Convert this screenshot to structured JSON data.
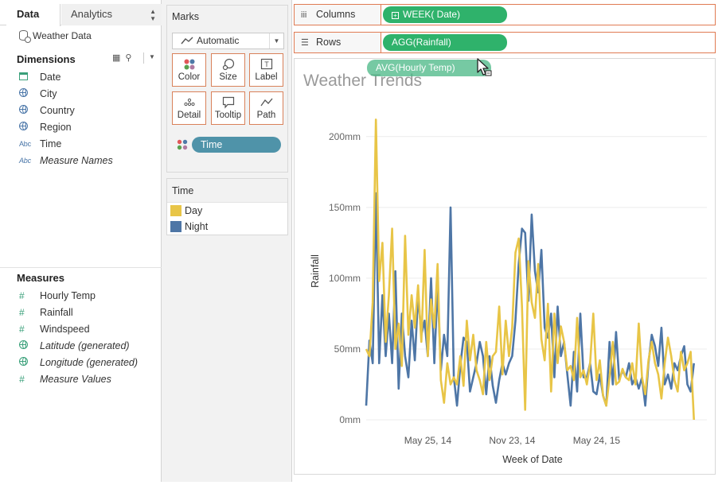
{
  "tabs": {
    "data": "Data",
    "analytics": "Analytics"
  },
  "data_source": "Weather Data",
  "dimensions": {
    "title": "Dimensions",
    "items": [
      {
        "label": "Date",
        "icon": "calendar-icon",
        "italic": false
      },
      {
        "label": "City",
        "icon": "globe-icon",
        "italic": false
      },
      {
        "label": "Country",
        "icon": "globe-icon",
        "italic": false
      },
      {
        "label": "Region",
        "icon": "globe-icon",
        "italic": false
      },
      {
        "label": "Time",
        "icon": "abc-icon",
        "italic": false
      },
      {
        "label": "Measure Names",
        "icon": "abc-icon",
        "italic": true
      }
    ]
  },
  "measures": {
    "title": "Measures",
    "items": [
      {
        "label": "Hourly Temp",
        "icon": "hash-icon",
        "italic": false
      },
      {
        "label": "Rainfall",
        "icon": "hash-icon",
        "italic": false
      },
      {
        "label": "Windspeed",
        "icon": "hash-icon",
        "italic": false
      },
      {
        "label": "Latitude (generated)",
        "icon": "globe-icon",
        "italic": true
      },
      {
        "label": "Longitude (generated)",
        "icon": "globe-icon",
        "italic": true
      },
      {
        "label": "Measure Values",
        "icon": "hash-icon",
        "italic": true
      }
    ]
  },
  "marks": {
    "title": "Marks",
    "mark_type": "Automatic",
    "buttons": {
      "color": "Color",
      "size": "Size",
      "label": "Label",
      "detail": "Detail",
      "tooltip": "Tooltip",
      "path": "Path"
    },
    "color_field": "Time"
  },
  "legend": {
    "title": "Time",
    "items": [
      {
        "label": "Day",
        "color": "#e8c547"
      },
      {
        "label": "Night",
        "color": "#4e76a6"
      }
    ]
  },
  "shelves": {
    "columns_label": "Columns",
    "columns_pill": "WEEK( Date)",
    "rows_label": "Rows",
    "rows_pill": "AGG(Rainfall)"
  },
  "drag_pill": "AVG(Hourly Temp)",
  "colors": {
    "shelf_border": "#e07b53",
    "pill_green": "#2fb26b",
    "pill_teal": "#4f93a9"
  },
  "chart_data": {
    "type": "line",
    "title": "Weather Trends",
    "xlabel": "Week of Date",
    "ylabel": "Rainfall",
    "x_tick_labels": [
      "May 25, 14",
      "Nov 23, 14",
      "May 24, 15"
    ],
    "y_tick_labels": [
      "0mm",
      "50mm",
      "100mm",
      "150mm",
      "200mm"
    ],
    "ylim": [
      0,
      210
    ],
    "grid": true,
    "x_range_weeks": [
      0,
      105
    ],
    "x_tick_weeks": [
      19,
      45,
      71
    ],
    "series": [
      {
        "name": "Day",
        "color": "#e8c547",
        "weeks": [
          0,
          1,
          2,
          3,
          4,
          5,
          6,
          7,
          8,
          9,
          10,
          11,
          12,
          13,
          14,
          15,
          16,
          17,
          18,
          19,
          20,
          21,
          22,
          23,
          24,
          25,
          26,
          27,
          28,
          29,
          30,
          31,
          32,
          33,
          34,
          35,
          36,
          37,
          38,
          39,
          40,
          41,
          42,
          43,
          44,
          45,
          46,
          47,
          48,
          49,
          50,
          51,
          52,
          53,
          54,
          55,
          56,
          57,
          58,
          59,
          60,
          61,
          62,
          63,
          64,
          65,
          66,
          67,
          68,
          69,
          70,
          71,
          72,
          73,
          74,
          75,
          76,
          77,
          78,
          79,
          80,
          81,
          82,
          83,
          84,
          85,
          86,
          87,
          88,
          89,
          90,
          91,
          92,
          93,
          94,
          95,
          96,
          97,
          98,
          99,
          100,
          101
        ],
        "values": [
          50,
          45,
          83,
          212,
          98,
          125,
          55,
          88,
          135,
          50,
          68,
          38,
          130,
          60,
          88,
          65,
          95,
          55,
          120,
          45,
          85,
          65,
          110,
          28,
          12,
          40,
          25,
          30,
          25,
          45,
          24,
          70,
          42,
          60,
          35,
          28,
          18,
          55,
          28,
          45,
          48,
          80,
          32,
          70,
          45,
          65,
          118,
          128,
          80,
          7,
          112,
          83,
          72,
          110,
          57,
          42,
          82,
          20,
          75,
          40,
          66,
          55,
          35,
          38,
          28,
          72,
          30,
          35,
          25,
          40,
          75,
          28,
          42,
          17,
          10,
          30,
          55,
          25,
          27,
          36,
          30,
          28,
          40,
          25,
          68,
          30,
          18,
          42,
          55,
          40,
          32,
          15,
          40,
          58,
          45,
          28,
          20,
          48,
          35,
          40,
          48,
          0
        ]
      },
      {
        "name": "Night",
        "color": "#4e76a6",
        "weeks": [
          0,
          1,
          2,
          3,
          4,
          5,
          6,
          7,
          8,
          9,
          10,
          11,
          12,
          13,
          14,
          15,
          16,
          17,
          18,
          19,
          20,
          21,
          22,
          23,
          24,
          25,
          26,
          27,
          28,
          29,
          30,
          31,
          32,
          33,
          34,
          35,
          36,
          37,
          38,
          39,
          40,
          41,
          42,
          43,
          44,
          45,
          46,
          47,
          48,
          49,
          50,
          51,
          52,
          53,
          54,
          55,
          56,
          57,
          58,
          59,
          60,
          61,
          62,
          63,
          64,
          65,
          66,
          67,
          68,
          69,
          70,
          71,
          72,
          73,
          74,
          75,
          76,
          77,
          78,
          79,
          80,
          81,
          82,
          83,
          84,
          85,
          86,
          87,
          88,
          89,
          90,
          91,
          92,
          93,
          94,
          95,
          96,
          97,
          98,
          99,
          100,
          101
        ],
        "values": [
          10,
          56,
          40,
          160,
          40,
          88,
          45,
          75,
          40,
          105,
          22,
          75,
          45,
          30,
          70,
          42,
          88,
          60,
          70,
          45,
          100,
          40,
          95,
          35,
          60,
          45,
          150,
          30,
          10,
          38,
          58,
          55,
          20,
          30,
          40,
          55,
          45,
          18,
          45,
          24,
          12,
          28,
          40,
          32,
          40,
          45,
          70,
          110,
          135,
          132,
          84,
          145,
          105,
          90,
          120,
          65,
          58,
          75,
          30,
          80,
          45,
          55,
          32,
          10,
          48,
          20,
          75,
          30,
          30,
          40,
          20,
          18,
          32,
          17,
          10,
          55,
          25,
          62,
          28,
          35,
          30,
          40,
          25,
          30,
          22,
          30,
          10,
          40,
          60,
          52,
          38,
          65,
          25,
          32,
          22,
          40,
          35,
          45,
          52,
          25,
          20,
          40
        ]
      }
    ]
  }
}
